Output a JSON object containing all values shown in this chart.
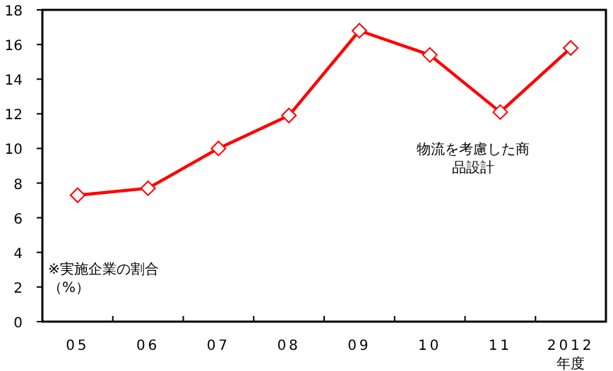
{
  "chart_data": {
    "type": "line",
    "xlabel": "年度",
    "ylabel": "※実施企業の割合（%）",
    "categories": [
      "05",
      "06",
      "07",
      "08",
      "09",
      "10",
      "11",
      "2012"
    ],
    "series": [
      {
        "name": "物流を考慮した商品設計",
        "color": "#ff0000",
        "values": [
          7.3,
          7.7,
          10.0,
          11.9,
          16.8,
          15.4,
          12.1,
          15.8
        ]
      }
    ],
    "ylim": [
      0,
      18
    ],
    "yticks": [
      0,
      2,
      4,
      6,
      8,
      10,
      12,
      14,
      16,
      18
    ],
    "marker": "diamond",
    "line_style": "solid",
    "legend": false,
    "grid": false
  }
}
